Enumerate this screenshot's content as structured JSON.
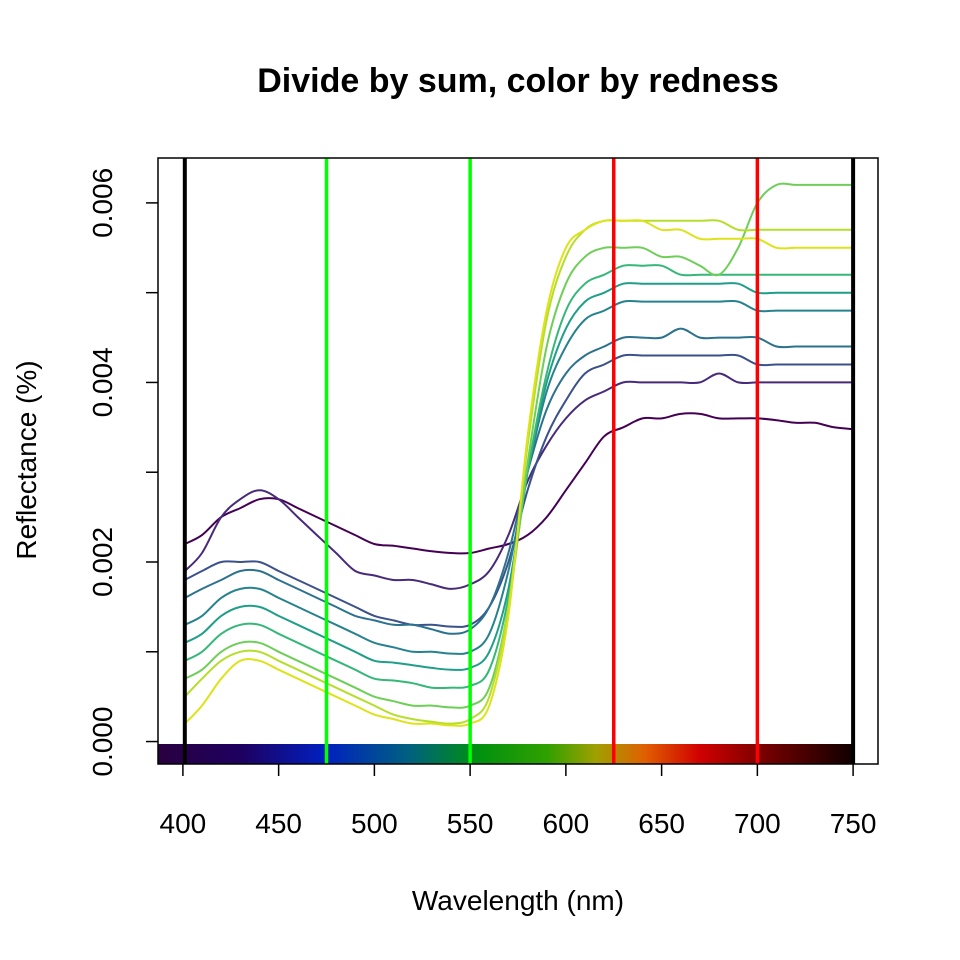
{
  "chart_data": {
    "type": "line",
    "title": "Divide by sum, color by redness",
    "xlabel": "Wavelength (nm)",
    "ylabel": "Reflectance (%)",
    "xlim": [
      387,
      763
    ],
    "ylim": [
      -0.00025,
      0.0065
    ],
    "x_ticks": [
      400,
      450,
      500,
      550,
      600,
      650,
      700,
      750
    ],
    "x_tick_labels": [
      "400",
      "450",
      "500",
      "550",
      "600",
      "650",
      "700",
      "750"
    ],
    "y_ticks": [
      0,
      0.001,
      0.002,
      0.003,
      0.004,
      0.005,
      0.006
    ],
    "y_tick_labels": [
      "0.000",
      "",
      "0.002",
      "",
      "0.004",
      "",
      "0.006"
    ],
    "grid": false,
    "legend": "none",
    "spectrum_bar": {
      "from": 387,
      "to": 750
    },
    "vertical_lines": [
      {
        "x": 401,
        "color": "#000000"
      },
      {
        "x": 475,
        "color": "#00ff00"
      },
      {
        "x": 550,
        "color": "#00ff00"
      },
      {
        "x": 625,
        "color": "#ff0000"
      },
      {
        "x": 700,
        "color": "#ff0000"
      },
      {
        "x": 750,
        "color": "#000000"
      }
    ],
    "series_template": {
      "x": [
        401,
        410,
        420,
        430,
        440,
        450,
        460,
        470,
        480,
        490,
        500,
        510,
        520,
        530,
        540,
        550,
        560,
        570,
        580,
        590,
        600,
        610,
        620,
        630,
        640,
        650,
        660,
        670,
        680,
        690,
        700,
        710,
        720,
        730,
        740,
        750
      ],
      "note_values_are_reflectance": true
    },
    "series": [
      {
        "color": "#440154",
        "values": [
          0.0022,
          0.0023,
          0.0025,
          0.0026,
          0.0027,
          0.0027,
          0.0026,
          0.0025,
          0.0024,
          0.0023,
          0.0022,
          0.00218,
          0.00215,
          0.00212,
          0.0021,
          0.0021,
          0.00215,
          0.0022,
          0.0023,
          0.0025,
          0.0028,
          0.0031,
          0.0034,
          0.0035,
          0.0036,
          0.0036,
          0.00365,
          0.00365,
          0.0036,
          0.0036,
          0.0036,
          0.00358,
          0.00355,
          0.00355,
          0.0035,
          0.00348
        ]
      },
      {
        "color": "#472a7a",
        "values": [
          0.0019,
          0.0021,
          0.0025,
          0.0027,
          0.0028,
          0.0027,
          0.0025,
          0.0023,
          0.0021,
          0.0019,
          0.00185,
          0.0018,
          0.0018,
          0.00175,
          0.0017,
          0.00175,
          0.0019,
          0.0023,
          0.0029,
          0.0033,
          0.0036,
          0.0038,
          0.0039,
          0.004,
          0.004,
          0.004,
          0.004,
          0.004,
          0.0041,
          0.004,
          0.004,
          0.004,
          0.004,
          0.004,
          0.004,
          0.004
        ]
      },
      {
        "color": "#3b518b",
        "values": [
          0.0018,
          0.0019,
          0.002,
          0.002,
          0.002,
          0.0019,
          0.0018,
          0.0017,
          0.0016,
          0.0015,
          0.0014,
          0.00135,
          0.0013,
          0.0013,
          0.00128,
          0.0013,
          0.0015,
          0.002,
          0.0028,
          0.0034,
          0.0038,
          0.0041,
          0.0042,
          0.0043,
          0.0043,
          0.0043,
          0.0043,
          0.0043,
          0.0043,
          0.0043,
          0.0042,
          0.0042,
          0.0042,
          0.0042,
          0.0042,
          0.0042
        ]
      },
      {
        "color": "#2c728e",
        "values": [
          0.0016,
          0.0017,
          0.0018,
          0.0019,
          0.0019,
          0.0018,
          0.0017,
          0.0016,
          0.0015,
          0.0014,
          0.00135,
          0.0013,
          0.0013,
          0.00125,
          0.0012,
          0.00125,
          0.0015,
          0.0021,
          0.003,
          0.0037,
          0.0041,
          0.0043,
          0.0044,
          0.0045,
          0.0045,
          0.0045,
          0.0046,
          0.0045,
          0.0045,
          0.0045,
          0.0045,
          0.0044,
          0.0044,
          0.0044,
          0.0044,
          0.0044
        ]
      },
      {
        "color": "#26828e",
        "values": [
          0.0013,
          0.0014,
          0.0016,
          0.0017,
          0.0017,
          0.0016,
          0.0015,
          0.0014,
          0.0013,
          0.0012,
          0.0011,
          0.00105,
          0.001,
          0.001,
          0.00098,
          0.001,
          0.0012,
          0.0019,
          0.003,
          0.0039,
          0.0044,
          0.0047,
          0.0048,
          0.0049,
          0.0049,
          0.0049,
          0.0049,
          0.0049,
          0.0049,
          0.0049,
          0.0048,
          0.0048,
          0.0048,
          0.0048,
          0.0048,
          0.0048
        ]
      },
      {
        "color": "#1f9e89",
        "values": [
          0.0011,
          0.0012,
          0.0014,
          0.0015,
          0.0015,
          0.0014,
          0.0013,
          0.0012,
          0.0011,
          0.001,
          0.0009,
          0.00088,
          0.00085,
          0.00082,
          0.0008,
          0.00082,
          0.001,
          0.0017,
          0.003,
          0.004,
          0.0046,
          0.0049,
          0.005,
          0.0051,
          0.0051,
          0.0051,
          0.0051,
          0.0051,
          0.0051,
          0.0051,
          0.005,
          0.005,
          0.005,
          0.005,
          0.005,
          0.005
        ]
      },
      {
        "color": "#35b779",
        "values": [
          0.0009,
          0.001,
          0.0012,
          0.0013,
          0.0013,
          0.0012,
          0.0011,
          0.001,
          0.0009,
          0.0008,
          0.0007,
          0.00068,
          0.00065,
          0.0006,
          0.0006,
          0.00062,
          0.0008,
          0.0016,
          0.003,
          0.0041,
          0.0048,
          0.0051,
          0.0052,
          0.0053,
          0.0053,
          0.0053,
          0.0052,
          0.0052,
          0.0052,
          0.0052,
          0.0052,
          0.0052,
          0.0052,
          0.0052,
          0.0052,
          0.0052
        ]
      },
      {
        "color": "#6ece58",
        "values": [
          0.0007,
          0.0008,
          0.001,
          0.0011,
          0.0011,
          0.001,
          0.0009,
          0.0008,
          0.0007,
          0.0006,
          0.0005,
          0.00045,
          0.0004,
          0.0004,
          0.00038,
          0.0004,
          0.0006,
          0.0015,
          0.0031,
          0.0044,
          0.0051,
          0.0054,
          0.0055,
          0.0055,
          0.0055,
          0.0054,
          0.0054,
          0.0053,
          0.0052,
          0.0055,
          0.006,
          0.0062,
          0.0062,
          0.0062,
          0.0062,
          0.0062
        ]
      },
      {
        "color": "#b5de2b",
        "values": [
          0.0005,
          0.0007,
          0.0009,
          0.001,
          0.001,
          0.0009,
          0.0008,
          0.0007,
          0.0006,
          0.0005,
          0.0004,
          0.0003,
          0.00025,
          0.00022,
          0.0002,
          0.00025,
          0.0005,
          0.0015,
          0.0033,
          0.0047,
          0.0054,
          0.0057,
          0.0058,
          0.0058,
          0.0058,
          0.0058,
          0.0058,
          0.0058,
          0.0058,
          0.0057,
          0.0057,
          0.0057,
          0.0057,
          0.0057,
          0.0057,
          0.0057
        ]
      },
      {
        "color": "#dde318",
        "values": [
          0.0002,
          0.0004,
          0.0007,
          0.0009,
          0.0009,
          0.0008,
          0.0007,
          0.0006,
          0.0005,
          0.0004,
          0.0003,
          0.00025,
          0.0002,
          0.0002,
          0.00018,
          0.0002,
          0.0004,
          0.0014,
          0.0034,
          0.0048,
          0.0055,
          0.0057,
          0.0058,
          0.0058,
          0.0058,
          0.0057,
          0.0057,
          0.0056,
          0.0056,
          0.0056,
          0.0056,
          0.0055,
          0.0055,
          0.0055,
          0.0055,
          0.0055
        ]
      }
    ]
  }
}
